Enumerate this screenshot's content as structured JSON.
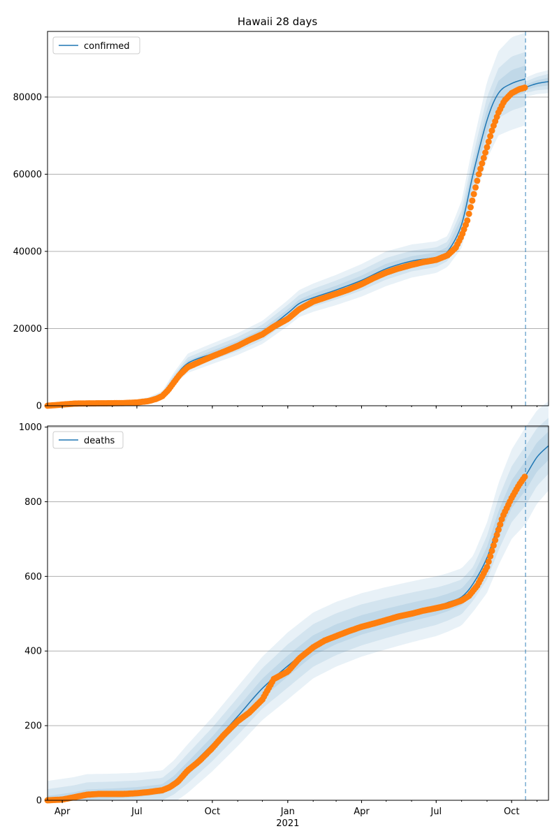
{
  "title": "Hawaii 28 days",
  "colors": {
    "model": "#1f77b4",
    "observed": "#ff7f0e",
    "band": "#1f77b4",
    "grid": "#b0b0b0",
    "forecast_line": "#1f77b4"
  },
  "x_axis": {
    "range": [
      "2020-03-14",
      "2021-11-15"
    ],
    "ticks": [
      {
        "date": "2020-04-01",
        "label": "Apr"
      },
      {
        "date": "2020-07-01",
        "label": "Jul"
      },
      {
        "date": "2020-10-01",
        "label": "Oct"
      },
      {
        "date": "2021-01-01",
        "label": "Jan"
      },
      {
        "date": "2021-04-01",
        "label": "Apr"
      },
      {
        "date": "2021-07-01",
        "label": "Jul"
      },
      {
        "date": "2021-10-01",
        "label": "Oct"
      }
    ],
    "year_label": {
      "date": "2021-01-01",
      "label": "2021"
    },
    "forecast_start": "2021-10-18"
  },
  "chart_data": [
    {
      "type": "line",
      "legend": "confirmed",
      "legend_position": "top-left",
      "grid": "horizontal",
      "ylim": [
        0,
        97000
      ],
      "yticks": [
        0,
        20000,
        40000,
        60000,
        80000
      ],
      "model": [
        [
          "2020-03-14",
          0
        ],
        [
          "2020-04-01",
          400
        ],
        [
          "2020-05-01",
          600
        ],
        [
          "2020-06-01",
          700
        ],
        [
          "2020-07-01",
          1000
        ],
        [
          "2020-07-15",
          1500
        ],
        [
          "2020-08-01",
          3000
        ],
        [
          "2020-08-15",
          7000
        ],
        [
          "2020-09-01",
          11000
        ],
        [
          "2020-10-01",
          13500
        ],
        [
          "2020-11-01",
          16000
        ],
        [
          "2020-12-01",
          19000
        ],
        [
          "2021-01-01",
          24000
        ],
        [
          "2021-01-15",
          26500
        ],
        [
          "2021-02-01",
          28000
        ],
        [
          "2021-03-01",
          30000
        ],
        [
          "2021-04-01",
          32500
        ],
        [
          "2021-05-01",
          35500
        ],
        [
          "2021-06-01",
          37500
        ],
        [
          "2021-07-01",
          38500
        ],
        [
          "2021-07-15",
          40000
        ],
        [
          "2021-08-01",
          47000
        ],
        [
          "2021-08-15",
          60000
        ],
        [
          "2021-09-01",
          74000
        ],
        [
          "2021-09-15",
          81000
        ],
        [
          "2021-10-01",
          83500
        ],
        [
          "2021-10-18",
          84700
        ],
        [
          "2021-10-19",
          82600
        ],
        [
          "2021-11-01",
          83500
        ],
        [
          "2021-11-15",
          84000
        ]
      ],
      "bands": [
        {
          "half_width": [
            [
              "2020-03-14",
              100
            ],
            [
              "2020-08-01",
              800
            ],
            [
              "2020-09-01",
              2500
            ],
            [
              "2020-12-01",
              3000
            ],
            [
              "2021-01-15",
              3500
            ],
            [
              "2021-05-01",
              4500
            ],
            [
              "2021-07-15",
              4000
            ],
            [
              "2021-09-01",
              10000
            ],
            [
              "2021-10-01",
              12000
            ],
            [
              "2021-10-18",
              12000
            ],
            [
              "2021-10-19",
              2500
            ],
            [
              "2021-11-15",
              3000
            ]
          ]
        },
        {
          "half_width": [
            [
              "2020-03-14",
              60
            ],
            [
              "2020-08-01",
              500
            ],
            [
              "2020-09-01",
              1500
            ],
            [
              "2020-12-01",
              2000
            ],
            [
              "2021-01-15",
              2200
            ],
            [
              "2021-05-01",
              2800
            ],
            [
              "2021-07-15",
              2500
            ],
            [
              "2021-09-01",
              6000
            ],
            [
              "2021-10-01",
              7000
            ],
            [
              "2021-10-18",
              7000
            ],
            [
              "2021-10-19",
              1500
            ],
            [
              "2021-11-15",
              2000
            ]
          ]
        },
        {
          "half_width": [
            [
              "2020-03-14",
              30
            ],
            [
              "2020-08-01",
              250
            ],
            [
              "2020-09-01",
              700
            ],
            [
              "2020-12-01",
              900
            ],
            [
              "2021-01-15",
              1000
            ],
            [
              "2021-05-01",
              1300
            ],
            [
              "2021-07-15",
              1200
            ],
            [
              "2021-09-01",
              3000
            ],
            [
              "2021-10-01",
              3500
            ],
            [
              "2021-10-18",
              3500
            ],
            [
              "2021-10-19",
              700
            ],
            [
              "2021-11-15",
              1000
            ]
          ]
        }
      ],
      "observed": [
        [
          "2020-03-14",
          0
        ],
        [
          "2020-04-01",
          300
        ],
        [
          "2020-04-15",
          550
        ],
        [
          "2020-05-01",
          610
        ],
        [
          "2020-05-15",
          630
        ],
        [
          "2020-06-01",
          650
        ],
        [
          "2020-06-15",
          700
        ],
        [
          "2020-07-01",
          850
        ],
        [
          "2020-07-15",
          1200
        ],
        [
          "2020-07-25",
          1800
        ],
        [
          "2020-08-01",
          2500
        ],
        [
          "2020-08-08",
          4000
        ],
        [
          "2020-08-15",
          6000
        ],
        [
          "2020-08-22",
          8000
        ],
        [
          "2020-09-01",
          10000
        ],
        [
          "2020-09-15",
          11300
        ],
        [
          "2020-10-01",
          12800
        ],
        [
          "2020-10-15",
          14000
        ],
        [
          "2020-11-01",
          15500
        ],
        [
          "2020-11-15",
          17000
        ],
        [
          "2020-12-01",
          18500
        ],
        [
          "2020-12-15",
          20500
        ],
        [
          "2021-01-01",
          22500
        ],
        [
          "2021-01-15",
          25000
        ],
        [
          "2021-02-01",
          27000
        ],
        [
          "2021-02-15",
          28000
        ],
        [
          "2021-03-01",
          29000
        ],
        [
          "2021-03-15",
          30000
        ],
        [
          "2021-04-01",
          31500
        ],
        [
          "2021-04-15",
          33000
        ],
        [
          "2021-05-01",
          34500
        ],
        [
          "2021-05-15",
          35500
        ],
        [
          "2021-06-01",
          36500
        ],
        [
          "2021-06-15",
          37200
        ],
        [
          "2021-07-01",
          37800
        ],
        [
          "2021-07-15",
          39000
        ],
        [
          "2021-07-25",
          41000
        ],
        [
          "2021-08-01",
          44000
        ],
        [
          "2021-08-08",
          48000
        ],
        [
          "2021-08-15",
          54000
        ],
        [
          "2021-08-22",
          60000
        ],
        [
          "2021-09-01",
          67000
        ],
        [
          "2021-09-08",
          72000
        ],
        [
          "2021-09-15",
          76000
        ],
        [
          "2021-09-22",
          79000
        ],
        [
          "2021-10-01",
          81000
        ],
        [
          "2021-10-10",
          82000
        ],
        [
          "2021-10-18",
          82500
        ]
      ]
    },
    {
      "type": "line",
      "legend": "deaths",
      "legend_position": "top-left",
      "grid": "horizontal",
      "ylim": [
        0,
        1003
      ],
      "yticks": [
        0,
        200,
        400,
        600,
        800,
        1000
      ],
      "model": [
        [
          "2020-03-14",
          0
        ],
        [
          "2020-04-15",
          8
        ],
        [
          "2020-05-01",
          15
        ],
        [
          "2020-06-01",
          18
        ],
        [
          "2020-07-01",
          22
        ],
        [
          "2020-08-01",
          30
        ],
        [
          "2020-08-15",
          50
        ],
        [
          "2020-09-01",
          85
        ],
        [
          "2020-10-01",
          150
        ],
        [
          "2020-11-01",
          225
        ],
        [
          "2020-12-01",
          300
        ],
        [
          "2021-01-01",
          360
        ],
        [
          "2021-02-01",
          415
        ],
        [
          "2021-03-01",
          445
        ],
        [
          "2021-04-01",
          470
        ],
        [
          "2021-05-01",
          488
        ],
        [
          "2021-06-01",
          505
        ],
        [
          "2021-07-01",
          520
        ],
        [
          "2021-07-15",
          530
        ],
        [
          "2021-08-01",
          545
        ],
        [
          "2021-08-15",
          580
        ],
        [
          "2021-09-01",
          650
        ],
        [
          "2021-09-15",
          740
        ],
        [
          "2021-10-01",
          820
        ],
        [
          "2021-10-18",
          870
        ],
        [
          "2021-11-01",
          920
        ],
        [
          "2021-11-15",
          950
        ]
      ],
      "bands": [
        {
          "half_width": [
            [
              "2020-03-14",
              52
            ],
            [
              "2020-05-01",
              55
            ],
            [
              "2020-08-01",
              50
            ],
            [
              "2020-09-01",
              65
            ],
            [
              "2020-11-01",
              80
            ],
            [
              "2021-01-01",
              90
            ],
            [
              "2021-04-01",
              85
            ],
            [
              "2021-07-01",
              80
            ],
            [
              "2021-08-15",
              75
            ],
            [
              "2021-09-15",
              110
            ],
            [
              "2021-10-18",
              130
            ],
            [
              "2021-11-15",
              120
            ]
          ]
        },
        {
          "half_width": [
            [
              "2020-03-14",
              30
            ],
            [
              "2020-05-01",
              33
            ],
            [
              "2020-08-01",
              30
            ],
            [
              "2020-09-01",
              40
            ],
            [
              "2020-11-01",
              50
            ],
            [
              "2021-01-01",
              58
            ],
            [
              "2021-04-01",
              55
            ],
            [
              "2021-07-01",
              50
            ],
            [
              "2021-08-15",
              45
            ],
            [
              "2021-09-15",
              70
            ],
            [
              "2021-10-18",
              80
            ],
            [
              "2021-11-15",
              75
            ]
          ]
        },
        {
          "half_width": [
            [
              "2020-03-14",
              12
            ],
            [
              "2020-05-01",
              14
            ],
            [
              "2020-08-01",
              13
            ],
            [
              "2020-09-01",
              18
            ],
            [
              "2020-11-01",
              24
            ],
            [
              "2021-01-01",
              28
            ],
            [
              "2021-04-01",
              26
            ],
            [
              "2021-07-01",
              24
            ],
            [
              "2021-08-15",
              22
            ],
            [
              "2021-09-15",
              35
            ],
            [
              "2021-10-18",
              40
            ],
            [
              "2021-11-15",
              38
            ]
          ]
        }
      ],
      "observed": [
        [
          "2020-03-14",
          0
        ],
        [
          "2020-04-01",
          2
        ],
        [
          "2020-04-15",
          8
        ],
        [
          "2020-05-01",
          15
        ],
        [
          "2020-05-15",
          17
        ],
        [
          "2020-06-01",
          17
        ],
        [
          "2020-06-15",
          17
        ],
        [
          "2020-07-01",
          19
        ],
        [
          "2020-07-15",
          22
        ],
        [
          "2020-08-01",
          27
        ],
        [
          "2020-08-10",
          35
        ],
        [
          "2020-08-20",
          50
        ],
        [
          "2020-09-01",
          80
        ],
        [
          "2020-09-15",
          105
        ],
        [
          "2020-10-01",
          140
        ],
        [
          "2020-10-15",
          175
        ],
        [
          "2020-11-01",
          212
        ],
        [
          "2020-11-15",
          235
        ],
        [
          "2020-12-01",
          270
        ],
        [
          "2020-12-15",
          325
        ],
        [
          "2021-01-01",
          345
        ],
        [
          "2021-01-15",
          380
        ],
        [
          "2021-02-01",
          410
        ],
        [
          "2021-02-15",
          428
        ],
        [
          "2021-03-01",
          440
        ],
        [
          "2021-03-15",
          452
        ],
        [
          "2021-04-01",
          465
        ],
        [
          "2021-04-15",
          473
        ],
        [
          "2021-05-01",
          483
        ],
        [
          "2021-05-15",
          492
        ],
        [
          "2021-06-01",
          500
        ],
        [
          "2021-06-15",
          508
        ],
        [
          "2021-07-01",
          515
        ],
        [
          "2021-07-15",
          522
        ],
        [
          "2021-08-01",
          535
        ],
        [
          "2021-08-10",
          548
        ],
        [
          "2021-08-20",
          575
        ],
        [
          "2021-09-01",
          625
        ],
        [
          "2021-09-10",
          690
        ],
        [
          "2021-09-20",
          760
        ],
        [
          "2021-10-01",
          810
        ],
        [
          "2021-10-10",
          845
        ],
        [
          "2021-10-18",
          870
        ]
      ]
    }
  ]
}
